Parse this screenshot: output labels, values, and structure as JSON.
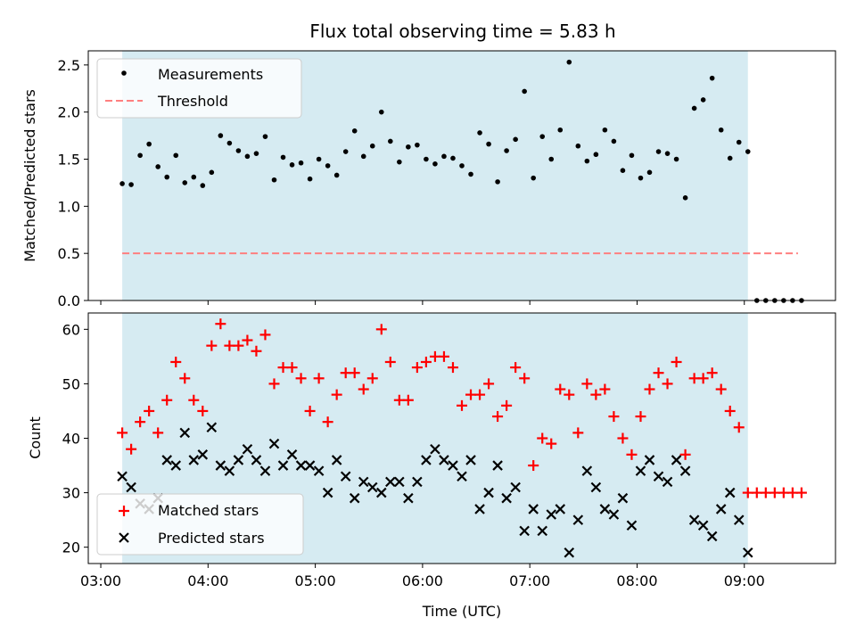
{
  "chart_data": [
    {
      "type": "scatter",
      "title": "Flux total observing time = 5.83 h",
      "xlabel": "",
      "ylabel": "Matched/Predicted stars",
      "ylim": [
        0,
        2.65
      ],
      "yticks": [
        "0.0",
        "0.5",
        "1.0",
        "1.5",
        "2.0",
        "2.5"
      ],
      "xticks": [
        "03:00",
        "04:00",
        "05:00",
        "06:00",
        "07:00",
        "08:00",
        "09:00"
      ],
      "x_range": [
        "02:53",
        "09:51"
      ],
      "observing_window": [
        "03:12",
        "09:02"
      ],
      "legend_position": "top-left",
      "colors": {
        "measurements": "#000000",
        "threshold": "#ff7f7f",
        "window": "#add8e6"
      },
      "threshold": {
        "name": "Threshold",
        "value": 0.5,
        "x": [
          "03:12",
          "09:30"
        ]
      },
      "series": [
        {
          "name": "Measurements",
          "x": [
            "03:12",
            "03:17",
            "03:22",
            "03:27",
            "03:32",
            "03:37",
            "03:42",
            "03:47",
            "03:52",
            "03:57",
            "04:02",
            "04:07",
            "04:12",
            "04:17",
            "04:22",
            "04:27",
            "04:32",
            "04:37",
            "04:42",
            "04:47",
            "04:52",
            "04:57",
            "05:02",
            "05:07",
            "05:12",
            "05:17",
            "05:22",
            "05:27",
            "05:32",
            "05:37",
            "05:42",
            "05:47",
            "05:52",
            "05:57",
            "06:02",
            "06:07",
            "06:12",
            "06:17",
            "06:22",
            "06:27",
            "06:32",
            "06:37",
            "06:42",
            "06:47",
            "06:52",
            "06:57",
            "07:02",
            "07:07",
            "07:12",
            "07:17",
            "07:22",
            "07:27",
            "07:32",
            "07:37",
            "07:42",
            "07:47",
            "07:52",
            "07:57",
            "08:02",
            "08:07",
            "08:12",
            "08:17",
            "08:22",
            "08:27",
            "08:32",
            "08:37",
            "08:42",
            "08:47",
            "08:52",
            "08:57",
            "09:02",
            "09:07",
            "09:12",
            "09:17",
            "09:22",
            "09:27",
            "09:32"
          ],
          "y": [
            1.24,
            1.23,
            1.54,
            1.66,
            1.42,
            1.31,
            1.54,
            1.25,
            1.31,
            1.22,
            1.36,
            1.75,
            1.67,
            1.59,
            1.53,
            1.56,
            1.74,
            1.28,
            1.52,
            1.44,
            1.46,
            1.29,
            1.5,
            1.43,
            1.33,
            1.58,
            1.8,
            1.53,
            1.64,
            2.0,
            1.69,
            1.47,
            1.63,
            1.65,
            1.5,
            1.45,
            1.53,
            1.51,
            1.43,
            1.34,
            1.78,
            1.66,
            1.26,
            1.59,
            1.71,
            2.22,
            1.3,
            1.74,
            1.5,
            1.81,
            2.53,
            1.64,
            1.48,
            1.55,
            1.81,
            1.69,
            1.38,
            1.54,
            1.3,
            1.36,
            1.58,
            1.56,
            1.5,
            1.09,
            2.04,
            2.13,
            2.36,
            1.81,
            1.51,
            1.68,
            1.58,
            0,
            0,
            0,
            0,
            0,
            0
          ]
        }
      ]
    },
    {
      "type": "scatter",
      "title": "",
      "xlabel": "Time (UTC)",
      "ylabel": "Count",
      "ylim": [
        17,
        63
      ],
      "yticks": [
        "20",
        "30",
        "40",
        "50",
        "60"
      ],
      "xticks": [
        "03:00",
        "04:00",
        "05:00",
        "06:00",
        "07:00",
        "08:00",
        "09:00"
      ],
      "x_range": [
        "02:53",
        "09:51"
      ],
      "observing_window": [
        "03:12",
        "09:02"
      ],
      "legend_position": "bottom-left",
      "colors": {
        "matched": "#ff0000",
        "predicted": "#000000",
        "window": "#add8e6"
      },
      "series": [
        {
          "name": "Matched stars",
          "x": [
            "03:12",
            "03:17",
            "03:22",
            "03:27",
            "03:32",
            "03:37",
            "03:42",
            "03:47",
            "03:52",
            "03:57",
            "04:02",
            "04:07",
            "04:12",
            "04:17",
            "04:22",
            "04:27",
            "04:32",
            "04:37",
            "04:42",
            "04:47",
            "04:52",
            "04:57",
            "05:02",
            "05:07",
            "05:12",
            "05:17",
            "05:22",
            "05:27",
            "05:32",
            "05:37",
            "05:42",
            "05:47",
            "05:52",
            "05:57",
            "06:02",
            "06:07",
            "06:12",
            "06:17",
            "06:22",
            "06:27",
            "06:32",
            "06:37",
            "06:42",
            "06:47",
            "06:52",
            "06:57",
            "07:02",
            "07:07",
            "07:12",
            "07:17",
            "07:22",
            "07:27",
            "07:32",
            "07:37",
            "07:42",
            "07:47",
            "07:52",
            "07:57",
            "08:02",
            "08:07",
            "08:12",
            "08:17",
            "08:22",
            "08:27",
            "08:32",
            "08:37",
            "08:42",
            "08:47",
            "08:52",
            "08:57",
            "09:02",
            "09:07",
            "09:12",
            "09:17",
            "09:22",
            "09:27",
            "09:32"
          ],
          "y": [
            41,
            38,
            43,
            45,
            41,
            47,
            54,
            51,
            47,
            45,
            57,
            61,
            57,
            57,
            58,
            56,
            59,
            50,
            53,
            53,
            51,
            45,
            51,
            43,
            48,
            52,
            52,
            49,
            51,
            60,
            54,
            47,
            47,
            53,
            54,
            55,
            55,
            53,
            46,
            48,
            48,
            50,
            44,
            46,
            53,
            51,
            35,
            40,
            39,
            49,
            48,
            41,
            50,
            48,
            49,
            44,
            40,
            37,
            44,
            49,
            52,
            50,
            54,
            37,
            51,
            51,
            52,
            49,
            45,
            42,
            30,
            30,
            30,
            30,
            30,
            30,
            30
          ]
        },
        {
          "name": "Predicted stars",
          "x": [
            "03:12",
            "03:17",
            "03:22",
            "03:27",
            "03:32",
            "03:37",
            "03:42",
            "03:47",
            "03:52",
            "03:57",
            "04:02",
            "04:07",
            "04:12",
            "04:17",
            "04:22",
            "04:27",
            "04:32",
            "04:37",
            "04:42",
            "04:47",
            "04:52",
            "04:57",
            "05:02",
            "05:07",
            "05:12",
            "05:17",
            "05:22",
            "05:27",
            "05:32",
            "05:37",
            "05:42",
            "05:47",
            "05:52",
            "05:57",
            "06:02",
            "06:07",
            "06:12",
            "06:17",
            "06:22",
            "06:27",
            "06:32",
            "06:37",
            "06:42",
            "06:47",
            "06:52",
            "06:57",
            "07:02",
            "07:07",
            "07:12",
            "07:17",
            "07:22",
            "07:27",
            "07:32",
            "07:37",
            "07:42",
            "07:47",
            "07:52",
            "07:57",
            "08:02",
            "08:07",
            "08:12",
            "08:17",
            "08:22",
            "08:27",
            "08:32",
            "08:37",
            "08:42",
            "08:47",
            "08:52",
            "08:57",
            "09:02"
          ],
          "y": [
            33,
            31,
            28,
            27,
            29,
            36,
            35,
            41,
            36,
            37,
            42,
            35,
            34,
            36,
            38,
            36,
            34,
            39,
            35,
            37,
            35,
            35,
            34,
            30,
            36,
            33,
            29,
            32,
            31,
            30,
            32,
            32,
            29,
            32,
            36,
            38,
            36,
            35,
            33,
            36,
            27,
            30,
            35,
            29,
            31,
            23,
            27,
            23,
            26,
            27,
            19,
            25,
            34,
            31,
            27,
            26,
            29,
            24,
            34,
            36,
            33,
            32,
            36,
            34,
            25,
            24,
            22,
            27,
            30,
            25,
            19
          ]
        }
      ]
    }
  ]
}
